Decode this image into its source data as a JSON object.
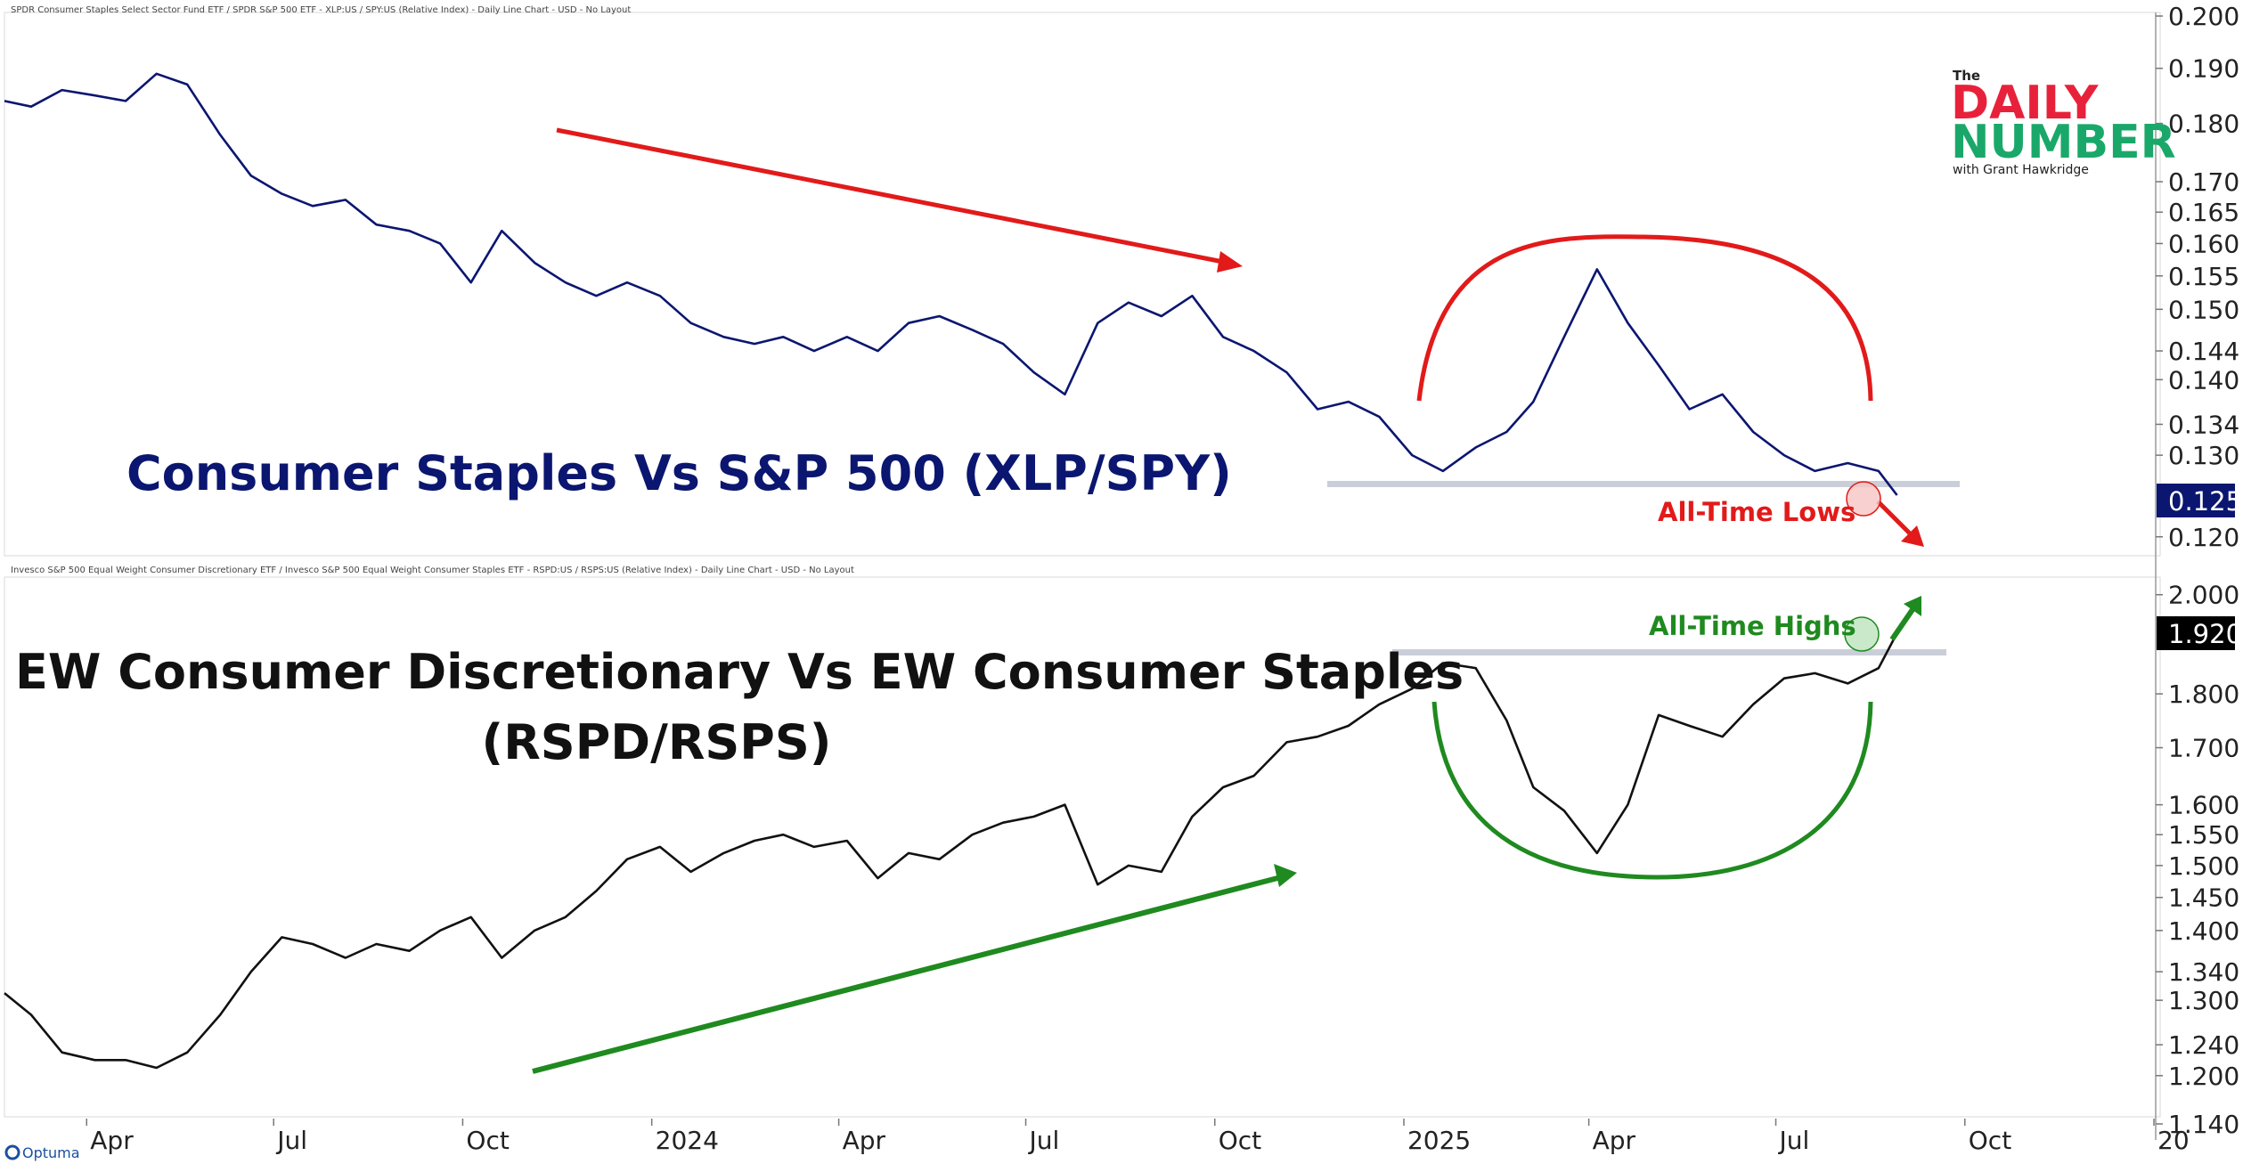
{
  "chart_data": [
    {
      "type": "line",
      "header": "SPDR Consumer Staples Select Sector Fund ETF / SPDR S&P 500 ETF - XLP:US / SPY:US (Relative Index) - Daily Line Chart - USD - No Layout",
      "title": "Consumer Staples Vs S&P 500 (XLP/SPY)",
      "scale": "log",
      "ylim": [
        0.118,
        0.2
      ],
      "y_ticks": [
        "0.200",
        "0.190",
        "0.180",
        "0.170",
        "0.165",
        "0.160",
        "0.155",
        "0.150",
        "0.144",
        "0.140",
        "0.134",
        "0.130",
        "0.120"
      ],
      "last_value": "0.125",
      "color": "#0b1670",
      "series": [
        {
          "x": [
            "2023-02-20",
            "2023-03-05",
            "2023-03-20",
            "2023-04-05",
            "2023-04-20",
            "2023-05-05",
            "2023-05-20",
            "2023-06-05",
            "2023-06-20",
            "2023-07-05",
            "2023-07-20",
            "2023-08-05",
            "2023-08-20",
            "2023-09-05",
            "2023-09-20",
            "2023-10-05",
            "2023-10-20",
            "2023-11-05",
            "2023-11-20",
            "2023-12-05",
            "2023-12-20",
            "2024-01-05",
            "2024-01-20",
            "2024-02-05",
            "2024-02-20",
            "2024-03-05",
            "2024-03-20",
            "2024-04-05",
            "2024-04-20",
            "2024-05-05",
            "2024-05-20",
            "2024-06-05",
            "2024-06-20",
            "2024-07-05",
            "2024-07-20",
            "2024-08-05",
            "2024-08-20",
            "2024-09-05",
            "2024-09-20",
            "2024-10-05",
            "2024-10-20",
            "2024-11-05",
            "2024-11-20",
            "2024-12-05",
            "2024-12-20",
            "2025-01-05",
            "2025-01-20",
            "2025-02-05",
            "2025-02-20",
            "2025-03-05",
            "2025-03-20",
            "2025-04-05",
            "2025-04-20",
            "2025-05-05",
            "2025-05-20",
            "2025-06-05",
            "2025-06-20",
            "2025-07-05",
            "2025-07-20",
            "2025-08-05",
            "2025-08-20",
            "2025-08-29"
          ],
          "values": [
            0.184,
            0.183,
            0.186,
            0.185,
            0.184,
            0.189,
            0.187,
            0.178,
            0.171,
            0.168,
            0.166,
            0.167,
            0.163,
            0.162,
            0.16,
            0.154,
            0.162,
            0.157,
            0.154,
            0.152,
            0.154,
            0.152,
            0.148,
            0.146,
            0.145,
            0.146,
            0.144,
            0.146,
            0.144,
            0.148,
            0.149,
            0.147,
            0.145,
            0.141,
            0.138,
            0.148,
            0.151,
            0.149,
            0.152,
            0.146,
            0.144,
            0.141,
            0.136,
            0.137,
            0.135,
            0.13,
            0.128,
            0.131,
            0.133,
            0.137,
            0.146,
            0.156,
            0.148,
            0.142,
            0.136,
            0.138,
            0.133,
            0.13,
            0.128,
            0.129,
            0.128,
            0.125
          ]
        }
      ]
    },
    {
      "type": "line",
      "header": "Invesco S&P 500 Equal Weight Consumer Discretionary ETF / Invesco S&P 500 Equal Weight Consumer Staples ETF - RSPD:US / RSPS:US (Relative Index) - Daily Line Chart - USD - No Layout",
      "title": "EW Consumer Discretionary Vs EW Consumer Staples",
      "subtitle": "(RSPD/RSPS)",
      "scale": "log",
      "ylim": [
        1.14,
        2.03
      ],
      "y_ticks": [
        "2.000",
        "1.800",
        "1.700",
        "1.600",
        "1.550",
        "1.500",
        "1.450",
        "1.400",
        "1.340",
        "1.300",
        "1.240",
        "1.200",
        "1.140"
      ],
      "last_value": "1.920",
      "color": "#111111",
      "series": [
        {
          "x": [
            "2023-02-20",
            "2023-03-05",
            "2023-03-20",
            "2023-04-05",
            "2023-04-20",
            "2023-05-05",
            "2023-05-20",
            "2023-06-05",
            "2023-06-20",
            "2023-07-05",
            "2023-07-20",
            "2023-08-05",
            "2023-08-20",
            "2023-09-05",
            "2023-09-20",
            "2023-10-05",
            "2023-10-20",
            "2023-11-05",
            "2023-11-20",
            "2023-12-05",
            "2023-12-20",
            "2024-01-05",
            "2024-01-20",
            "2024-02-05",
            "2024-02-20",
            "2024-03-05",
            "2024-03-20",
            "2024-04-05",
            "2024-04-20",
            "2024-05-05",
            "2024-05-20",
            "2024-06-05",
            "2024-06-20",
            "2024-07-05",
            "2024-07-20",
            "2024-08-05",
            "2024-08-20",
            "2024-09-05",
            "2024-09-20",
            "2024-10-05",
            "2024-10-20",
            "2024-11-05",
            "2024-11-20",
            "2024-12-05",
            "2024-12-20",
            "2025-01-05",
            "2025-01-20",
            "2025-02-05",
            "2025-02-20",
            "2025-03-05",
            "2025-03-20",
            "2025-04-05",
            "2025-04-20",
            "2025-05-05",
            "2025-05-20",
            "2025-06-05",
            "2025-06-20",
            "2025-07-05",
            "2025-07-20",
            "2025-08-05",
            "2025-08-20",
            "2025-08-29"
          ],
          "values": [
            1.31,
            1.28,
            1.23,
            1.22,
            1.22,
            1.21,
            1.23,
            1.28,
            1.34,
            1.39,
            1.38,
            1.36,
            1.38,
            1.37,
            1.4,
            1.42,
            1.36,
            1.4,
            1.42,
            1.46,
            1.51,
            1.53,
            1.49,
            1.52,
            1.54,
            1.55,
            1.53,
            1.54,
            1.48,
            1.52,
            1.51,
            1.55,
            1.57,
            1.58,
            1.6,
            1.47,
            1.5,
            1.49,
            1.58,
            1.63,
            1.65,
            1.71,
            1.72,
            1.74,
            1.78,
            1.81,
            1.86,
            1.85,
            1.75,
            1.63,
            1.59,
            1.52,
            1.6,
            1.76,
            1.74,
            1.72,
            1.78,
            1.83,
            1.84,
            1.82,
            1.85,
            1.92
          ]
        }
      ]
    }
  ],
  "x_axis": {
    "labels": [
      "Apr",
      "Jul",
      "Oct",
      "2024",
      "Apr",
      "Jul",
      "Oct",
      "2025",
      "Apr",
      "Jul",
      "Oct",
      "20"
    ],
    "dates": [
      "2023-04-01",
      "2023-07-01",
      "2023-10-01",
      "2024-01-01",
      "2024-04-01",
      "2024-07-01",
      "2024-10-01",
      "2025-01-01",
      "2025-04-01",
      "2025-07-01",
      "2025-10-01",
      "2026-01-01"
    ]
  },
  "annotations": {
    "all_time_lows": "All-Time Lows",
    "all_time_highs": "All-Time Highs",
    "red": "#e21a1a",
    "green": "#1f8a1f"
  },
  "logo": {
    "the": "The",
    "daily": "DAILY",
    "number": "NUMBER",
    "with": "with Grant Hawkridge"
  },
  "brand": "Optuma"
}
